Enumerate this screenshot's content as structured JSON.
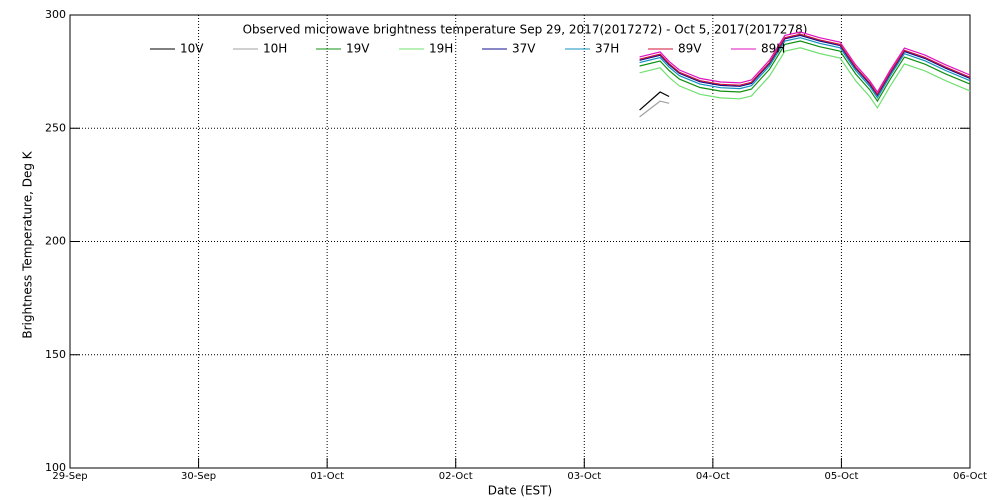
{
  "chart_data": {
    "type": "line",
    "title": "Observed microwave brightness temperature Sep 29, 2017(2017272) - Oct  5, 2017(2017278)",
    "x_label": "Date (EST)",
    "y_label": "Brightness Temperature, Deg K",
    "xlim": [
      0,
      7
    ],
    "ylim": [
      100,
      300
    ],
    "xticks": [
      {
        "value": 0,
        "label": "29-Sep"
      },
      {
        "value": 1,
        "label": "30-Sep"
      },
      {
        "value": 2,
        "label": "01-Oct"
      },
      {
        "value": 3,
        "label": "02-Oct"
      },
      {
        "value": 4,
        "label": "03-Oct"
      },
      {
        "value": 5,
        "label": "04-Oct"
      },
      {
        "value": 6,
        "label": "05-Oct"
      },
      {
        "value": 7,
        "label": "06-Oct"
      }
    ],
    "yticks": [
      100,
      150,
      200,
      250,
      300
    ],
    "grid": true,
    "x": [
      4.43,
      4.59,
      4.66,
      4.74,
      4.9,
      5.06,
      5.21,
      5.3,
      5.44,
      5.56,
      5.68,
      5.83,
      5.99,
      6.11,
      6.22,
      6.28,
      6.38,
      6.49,
      6.65,
      6.81,
      7.0
    ],
    "series": [
      {
        "name": "10V",
        "color": "#000000",
        "values": [
          258,
          266,
          264,
          null,
          null,
          null,
          null,
          null,
          null,
          null,
          null,
          null,
          null,
          null,
          null,
          null,
          null,
          null,
          null,
          null,
          null
        ]
      },
      {
        "name": "10H",
        "color": "#a0a0a0",
        "values": [
          255,
          262,
          261,
          null,
          null,
          null,
          null,
          null,
          null,
          null,
          null,
          null,
          null,
          null,
          null,
          null,
          null,
          null,
          null,
          null,
          null
        ]
      },
      {
        "name": "19V",
        "color": "#109010",
        "values": [
          277.5,
          279.7,
          275.5,
          271.7,
          268,
          266.4,
          266,
          267.3,
          276,
          287,
          288.5,
          286,
          284,
          274,
          267,
          262,
          271.7,
          281.4,
          278.3,
          274,
          269.5
        ]
      },
      {
        "name": "19H",
        "color": "#70e070",
        "values": [
          274.5,
          276.7,
          272.5,
          268.7,
          265,
          263.4,
          263,
          264.3,
          273,
          284,
          285.5,
          283,
          281,
          271,
          264,
          259,
          268.7,
          278.4,
          275.3,
          271,
          266.5
        ]
      },
      {
        "name": "37V",
        "color": "#101090",
        "values": [
          280,
          282.2,
          278,
          274.2,
          270.5,
          268.9,
          268.5,
          269.8,
          278.5,
          289.5,
          291,
          288.5,
          286.5,
          276.5,
          269.5,
          264.5,
          274.2,
          283.9,
          280.8,
          276.5,
          272
        ]
      },
      {
        "name": "37H",
        "color": "#1090c0",
        "values": [
          279,
          281.2,
          277,
          273.2,
          269.5,
          267.9,
          267.5,
          268.8,
          277.5,
          288.5,
          290,
          287.5,
          285.5,
          275.5,
          268.5,
          263.5,
          273.2,
          282.9,
          279.8,
          275.5,
          271
        ]
      },
      {
        "name": "89V",
        "color": "#d01030",
        "values": [
          280.5,
          282.7,
          278.5,
          274.7,
          271,
          269.4,
          269,
          270.3,
          279,
          290,
          291.5,
          289,
          287,
          277,
          270,
          265,
          274.7,
          284.4,
          281.3,
          277,
          272.5
        ]
      },
      {
        "name": "89H",
        "color": "#e010c0",
        "values": [
          281.5,
          283.7,
          279.5,
          275.7,
          272,
          270.4,
          270,
          271.3,
          280,
          291,
          292.5,
          290,
          288,
          278,
          271,
          266,
          275.7,
          285.4,
          282.3,
          278,
          273.5
        ]
      }
    ]
  }
}
